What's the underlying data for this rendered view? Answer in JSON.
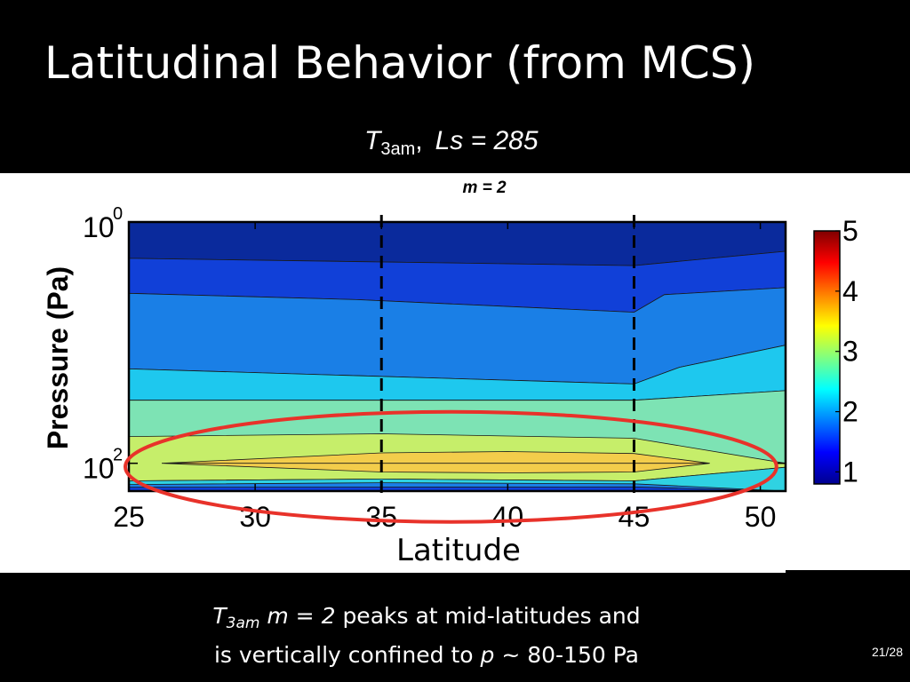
{
  "slide": {
    "title": "Latitudinal Behavior (from MCS)",
    "subtitle": {
      "symbol": "T",
      "subscript": "3am",
      "separator": ",",
      "text": "Ls = 285"
    },
    "caption": {
      "symbol": "T",
      "subscript": "3am",
      "mode": "m = 2",
      "line1_text": "peaks at mid-latitudes and",
      "line2_prefix": "is vertically confined to",
      "pressure_symbol": "p",
      "line2_suffix": "~ 80-150 Pa"
    },
    "page_number": "21/28"
  },
  "chart_data": {
    "type": "heatmap",
    "title": "m = 2",
    "xlabel": "Latitude",
    "ylabel": "Pressure (Pa)",
    "xlim": [
      25,
      51
    ],
    "ylim": [
      1,
      170
    ],
    "yscale": "log",
    "x_ticks": [
      25,
      30,
      35,
      40,
      45,
      50
    ],
    "y_ticks": [
      {
        "value": 1,
        "base": "10",
        "exp": "0"
      },
      {
        "value": 100,
        "base": "10",
        "exp": "2"
      }
    ],
    "colorbar": {
      "min": 0.8,
      "max": 5,
      "ticks": [
        1,
        2,
        3,
        4,
        5
      ]
    },
    "colormap": [
      "#00008f",
      "#0000ff",
      "#007fff",
      "#00ffff",
      "#80ff80",
      "#ffff00",
      "#ff8000",
      "#ff0000",
      "#800000"
    ],
    "dashed_lines_x": [
      35,
      45
    ],
    "highlight": {
      "type": "ellipse",
      "color": "#e8322a",
      "lat_range": [
        25,
        50.5
      ],
      "pressure_center": 100
    },
    "bands": [
      {
        "value": 1.0,
        "color": "#0a2a9c",
        "top": [
          [
            25,
            1
          ],
          [
            51,
            1
          ]
        ],
        "bottom": [
          [
            25,
            2.0
          ],
          [
            45,
            2.3
          ],
          [
            51,
            1.75
          ]
        ]
      },
      {
        "value": 1.3,
        "color": "#1140d8",
        "top": [
          [
            25,
            2.0
          ],
          [
            45,
            2.3
          ],
          [
            51,
            1.75
          ]
        ],
        "bottom": [
          [
            25,
            3.9
          ],
          [
            34,
            4.4
          ],
          [
            45,
            5.6
          ],
          [
            46.2,
            4.0
          ],
          [
            51,
            3.5
          ]
        ]
      },
      {
        "value": 1.7,
        "color": "#1a7fe6",
        "top": [
          [
            25,
            3.9
          ],
          [
            34,
            4.4
          ],
          [
            45,
            5.6
          ],
          [
            46.2,
            4.0
          ],
          [
            51,
            3.5
          ]
        ],
        "bottom": [
          [
            25,
            16.5
          ],
          [
            45,
            22
          ],
          [
            46.8,
            16
          ],
          [
            51,
            10.5
          ]
        ]
      },
      {
        "value": 2.1,
        "color": "#1ec8ee",
        "top": [
          [
            25,
            16.5
          ],
          [
            45,
            22
          ],
          [
            46.8,
            16
          ],
          [
            51,
            10.5
          ]
        ],
        "bottom": [
          [
            25,
            30
          ],
          [
            45,
            30
          ],
          [
            51,
            25
          ]
        ]
      },
      {
        "value": 2.5,
        "color": "#7de3b4",
        "top": [
          [
            25,
            30
          ],
          [
            45,
            30
          ],
          [
            51,
            25
          ]
        ],
        "bottom": [
          [
            25,
            170
          ],
          [
            51,
            170
          ]
        ]
      },
      {
        "value": 2.9,
        "color": "#c6ee6a",
        "top": [
          [
            25,
            60
          ],
          [
            35,
            57
          ],
          [
            45,
            62
          ],
          [
            51,
            100
          ]
        ],
        "bottom": [
          [
            25,
            140
          ],
          [
            35,
            135
          ],
          [
            45,
            140
          ],
          [
            51,
            108
          ]
        ]
      },
      {
        "value": 3.3,
        "color": "#f3cd4b",
        "top": [
          [
            26.3,
            100
          ],
          [
            35,
            82
          ],
          [
            40,
            80
          ],
          [
            45,
            83
          ],
          [
            48,
            100
          ]
        ],
        "bottom": [
          [
            48,
            100
          ],
          [
            45,
            118
          ],
          [
            40,
            120
          ],
          [
            35,
            118
          ],
          [
            26.3,
            100
          ]
        ]
      },
      {
        "value": 2.2,
        "color": "#2fd2e2",
        "top": [
          [
            25,
            140
          ],
          [
            35,
            135
          ],
          [
            45,
            140
          ],
          [
            51,
            108
          ]
        ],
        "bottom": [
          [
            25,
            170
          ],
          [
            51,
            170
          ]
        ]
      },
      {
        "value": 1.6,
        "color": "#1a7fe6",
        "top": [
          [
            25,
            150
          ],
          [
            35,
            145
          ],
          [
            45,
            148
          ],
          [
            51,
            170
          ]
        ],
        "bottom": [
          [
            25,
            170
          ],
          [
            51,
            170
          ]
        ]
      },
      {
        "value": 1.1,
        "color": "#1140d8",
        "top": [
          [
            25,
            158
          ],
          [
            45,
            157
          ],
          [
            51,
            170
          ]
        ],
        "bottom": [
          [
            25,
            170
          ],
          [
            51,
            170
          ]
        ]
      }
    ]
  }
}
